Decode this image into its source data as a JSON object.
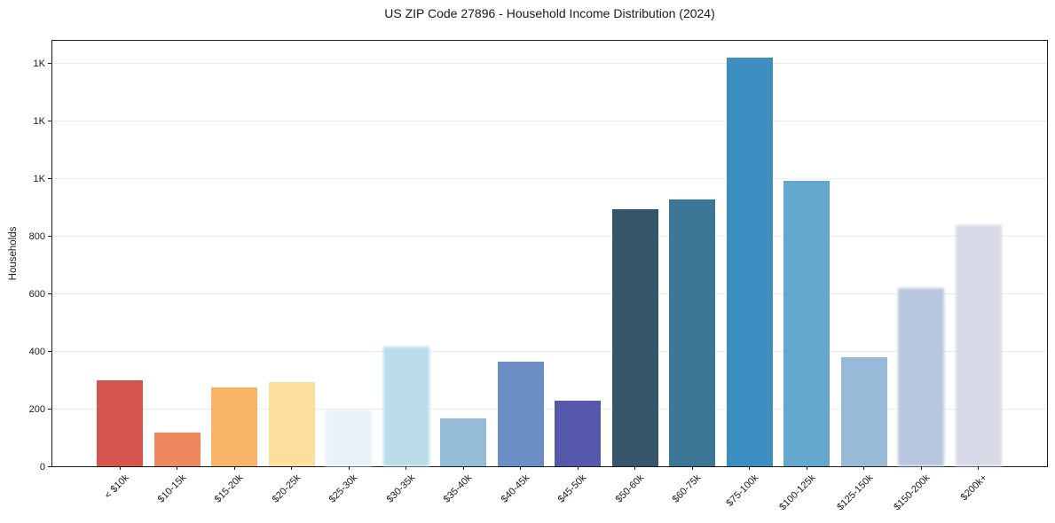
{
  "chart_data": {
    "type": "bar",
    "title": "US ZIP Code 27896 - Household Income Distribution (2024)",
    "xlabel": "",
    "ylabel": "Households",
    "categories": [
      "< $10k",
      "$10-15k",
      "$15-20k",
      "$20-25k",
      "$25-30k",
      "$30-35k",
      "$35-40k",
      "$40-45k",
      "$45-50k",
      "$50-60k",
      "$60-75k",
      "$75-100k",
      "$100-125k",
      "$125-150k",
      "$150-200k",
      "$200k+"
    ],
    "values": [
      297,
      118,
      275,
      291,
      197,
      416,
      166,
      362,
      228,
      893,
      927,
      1418,
      991,
      379,
      618,
      838
    ],
    "bar_colors": [
      "#d6564e",
      "#ef875f",
      "#f9b469",
      "#fcdf9c",
      "#e9f2f8",
      "#badcea",
      "#96bdd8",
      "#6b8fc5",
      "#5558ab",
      "#36566b",
      "#3b7897",
      "#3d8ec1",
      "#65a8ce",
      "#97bad8",
      "#b7c6de",
      "#d7d9e6"
    ],
    "soft_bar_indices": [
      4,
      5,
      14,
      15
    ],
    "ylim": [
      0,
      1477
    ],
    "yticks": [
      {
        "v": 0,
        "label": "0"
      },
      {
        "v": 200,
        "label": "200"
      },
      {
        "v": 400,
        "label": "400"
      },
      {
        "v": 600,
        "label": "600"
      },
      {
        "v": 800,
        "label": "800"
      },
      {
        "v": 1000,
        "label": "1K"
      },
      {
        "v": 1200,
        "label": "1K"
      },
      {
        "v": 1400,
        "label": "1K"
      }
    ],
    "grid": "horizontal",
    "legend": "none",
    "colors": {
      "grid": "#ececec",
      "spine": "#1c1c1c",
      "text": "#1a1a1a",
      "background": "#ffffff"
    }
  }
}
